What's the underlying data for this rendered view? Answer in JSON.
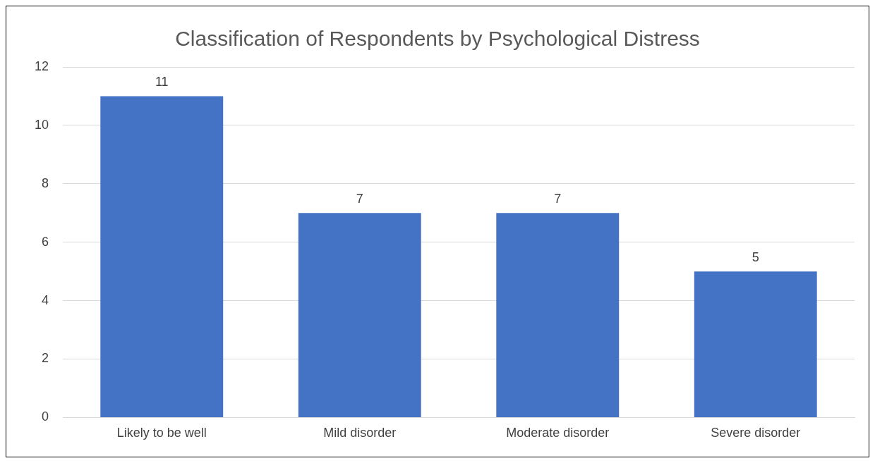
{
  "chart_data": {
    "type": "bar",
    "title": "Classification of Respondents by Psychological Distress",
    "categories": [
      "Likely to be well",
      "Mild disorder",
      "Moderate disorder",
      "Severe disorder"
    ],
    "values": [
      11,
      7,
      7,
      5
    ],
    "color": "#4472c4",
    "ylim": [
      0,
      12
    ],
    "yticks": [
      0,
      2,
      4,
      6,
      8,
      10,
      12
    ],
    "grid": "y",
    "data_labels": true,
    "legend": false
  }
}
